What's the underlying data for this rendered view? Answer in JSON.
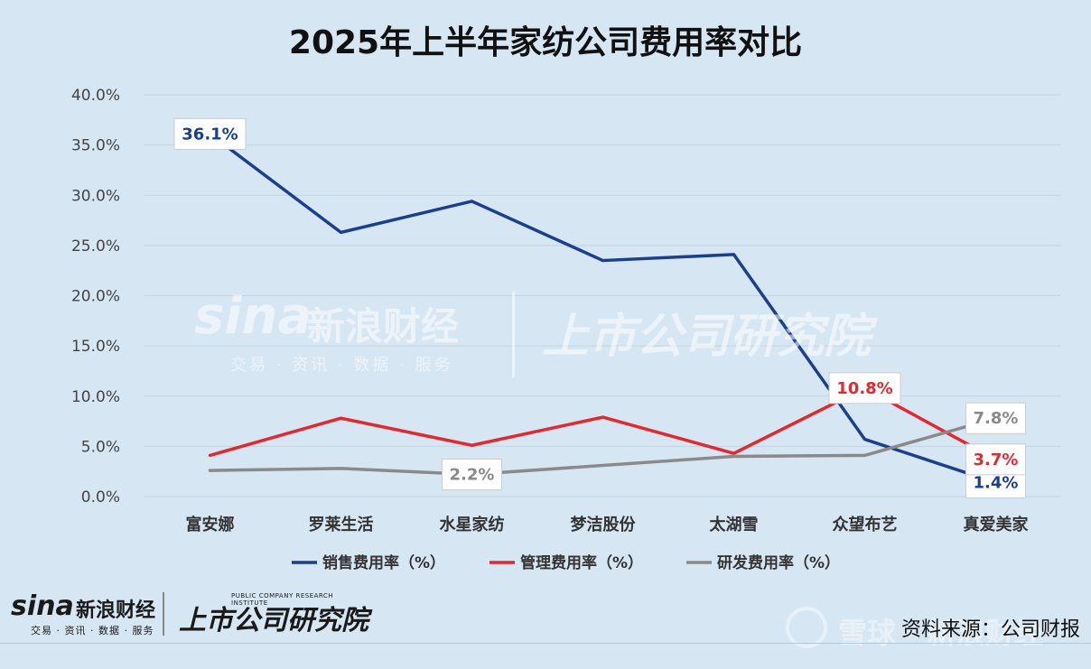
{
  "chart_data": {
    "type": "line",
    "title": "2025年上半年家纺公司费用率对比",
    "categories": [
      "富安娜",
      "罗莱生活",
      "水星家纺",
      "梦洁股份",
      "太湖雪",
      "众望布艺",
      "真爱美家"
    ],
    "series": [
      {
        "name": "销售费用率（%）",
        "color": "#1a3f8f",
        "values": [
          36.1,
          26.3,
          29.4,
          23.5,
          24.1,
          5.7,
          1.4
        ]
      },
      {
        "name": "管理费用率（%）",
        "color": "#e02a2f",
        "values": [
          4.1,
          7.8,
          5.1,
          7.9,
          4.3,
          10.8,
          3.7
        ]
      },
      {
        "name": "研发费用率（%）",
        "color": "#8a8a8a",
        "values": [
          2.6,
          2.8,
          2.2,
          3.1,
          4.0,
          4.1,
          7.8
        ]
      }
    ],
    "ylim": [
      0,
      40
    ],
    "yticks": [
      "0.0%",
      "5.0%",
      "10.0%",
      "15.0%",
      "20.0%",
      "25.0%",
      "30.0%",
      "35.0%",
      "40.0%"
    ],
    "annotations": [
      {
        "series": 0,
        "index": 0,
        "text": "36.1%"
      },
      {
        "series": 0,
        "index": 6,
        "text": "1.4%"
      },
      {
        "series": 1,
        "index": 5,
        "text": "10.8%"
      },
      {
        "series": 1,
        "index": 6,
        "text": "3.7%"
      },
      {
        "series": 2,
        "index": 2,
        "text": "2.2%"
      },
      {
        "series": 2,
        "index": 6,
        "text": "7.8%"
      }
    ],
    "grid": true,
    "legend_position": "bottom"
  },
  "watermark": {
    "sina": "sina",
    "brand": "新浪财经",
    "sub": "交易 · 资讯 · 数据 · 服务",
    "institute": "上市公司研究院"
  },
  "logo": {
    "sina": "sina",
    "brand": "新浪财经",
    "sub": "交易 · 资讯 · 数据 · 服务",
    "institute": "上市公司研究院",
    "institute_en": "PUBLIC COMPANY RESEARCH INSTITUTE"
  },
  "source_note": "资料来源：公司财报",
  "snowball": {
    "text": "雪球 · 新浪财经"
  }
}
